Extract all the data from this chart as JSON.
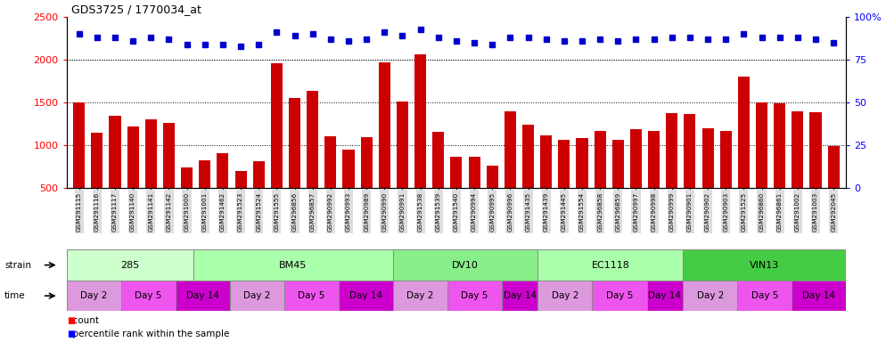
{
  "title": "GDS3725 / 1770034_at",
  "samples": [
    "GSM291115",
    "GSM291116",
    "GSM291117",
    "GSM291140",
    "GSM291141",
    "GSM291142",
    "GSM291000",
    "GSM291001",
    "GSM291462",
    "GSM291523",
    "GSM291524",
    "GSM291555",
    "GSM296856",
    "GSM296857",
    "GSM290992",
    "GSM290993",
    "GSM290989",
    "GSM290990",
    "GSM290991",
    "GSM291538",
    "GSM291539",
    "GSM291540",
    "GSM290994",
    "GSM290995",
    "GSM290996",
    "GSM291435",
    "GSM291439",
    "GSM291445",
    "GSM291554",
    "GSM296858",
    "GSM296859",
    "GSM290997",
    "GSM290998",
    "GSM290999",
    "GSM290901",
    "GSM290902",
    "GSM290903",
    "GSM291525",
    "GSM296860",
    "GSM296861",
    "GSM291002",
    "GSM291003",
    "GSM292045"
  ],
  "counts": [
    1500,
    1150,
    1350,
    1220,
    1300,
    1260,
    740,
    830,
    910,
    700,
    810,
    1960,
    1550,
    1640,
    1110,
    950,
    1100,
    1970,
    1510,
    2060,
    1160,
    870,
    870,
    760,
    1400,
    1240,
    1120,
    1060,
    1090,
    1170,
    1060,
    1190,
    1170,
    1380,
    1370,
    1200,
    1170,
    1800,
    1500,
    1490,
    1400,
    1390,
    990
  ],
  "percentile_ranks": [
    90,
    88,
    88,
    86,
    88,
    87,
    84,
    84,
    84,
    83,
    84,
    91,
    89,
    90,
    87,
    86,
    87,
    91,
    89,
    93,
    88,
    86,
    85,
    84,
    88,
    88,
    87,
    86,
    86,
    87,
    86,
    87,
    87,
    88,
    88,
    87,
    87,
    90,
    88,
    88,
    88,
    87,
    85
  ],
  "ylim_left": [
    500,
    2500
  ],
  "ylim_right": [
    0,
    100
  ],
  "bar_color": "#cc0000",
  "dot_color": "#0000cc",
  "left_yticks": [
    500,
    1000,
    1500,
    2000,
    2500
  ],
  "right_yticks": [
    0,
    25,
    50,
    75,
    100
  ],
  "strain_groups": [
    {
      "label": "285",
      "start": 0,
      "end": 7,
      "color": "#ccffcc"
    },
    {
      "label": "BM45",
      "start": 7,
      "end": 18,
      "color": "#aaffaa"
    },
    {
      "label": "DV10",
      "start": 18,
      "end": 26,
      "color": "#88ee88"
    },
    {
      "label": "EC1118",
      "start": 26,
      "end": 34,
      "color": "#aaffaa"
    },
    {
      "label": "VIN13",
      "start": 34,
      "end": 43,
      "color": "#44cc44"
    }
  ],
  "time_blocks": [
    {
      "label": "Day 2",
      "start": 0,
      "end": 3,
      "color": "#dd99dd"
    },
    {
      "label": "Day 5",
      "start": 3,
      "end": 6,
      "color": "#ee55ee"
    },
    {
      "label": "Day 14",
      "start": 6,
      "end": 9,
      "color": "#cc00cc"
    },
    {
      "label": "Day 2",
      "start": 9,
      "end": 12,
      "color": "#dd99dd"
    },
    {
      "label": "Day 5",
      "start": 12,
      "end": 15,
      "color": "#ee55ee"
    },
    {
      "label": "Day 14",
      "start": 15,
      "end": 18,
      "color": "#cc00cc"
    },
    {
      "label": "Day 2",
      "start": 18,
      "end": 21,
      "color": "#dd99dd"
    },
    {
      "label": "Day 5",
      "start": 21,
      "end": 24,
      "color": "#ee55ee"
    },
    {
      "label": "Day 14",
      "start": 24,
      "end": 26,
      "color": "#cc00cc"
    },
    {
      "label": "Day 2",
      "start": 26,
      "end": 29,
      "color": "#dd99dd"
    },
    {
      "label": "Day 5",
      "start": 29,
      "end": 32,
      "color": "#ee55ee"
    },
    {
      "label": "Day 14",
      "start": 32,
      "end": 34,
      "color": "#cc00cc"
    },
    {
      "label": "Day 2",
      "start": 34,
      "end": 37,
      "color": "#dd99dd"
    },
    {
      "label": "Day 5",
      "start": 37,
      "end": 40,
      "color": "#ee55ee"
    },
    {
      "label": "Day 14",
      "start": 40,
      "end": 43,
      "color": "#cc00cc"
    }
  ],
  "xtick_bg_color": "#dddddd"
}
